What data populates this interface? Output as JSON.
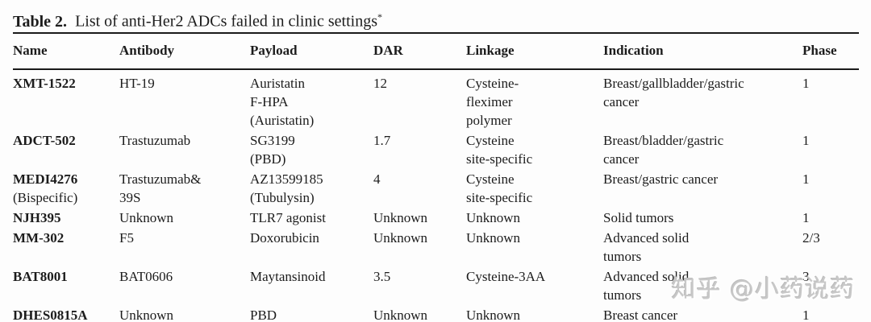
{
  "caption": {
    "label": "Table 2.",
    "text": "List of anti-Her2 ADCs failed in clinic settings",
    "superscript": "*"
  },
  "table": {
    "columns": [
      "Name",
      "Antibody",
      "Payload",
      "DAR",
      "Linkage",
      "Indication",
      "Phase"
    ],
    "rows": [
      {
        "name": "XMT-1522",
        "name_sub": "",
        "antibody": "HT-19",
        "payload": "Auristatin\nF-HPA\n(Auristatin)",
        "dar": "12",
        "linkage": "Cysteine-\nfleximer\npolymer",
        "indication": "Breast/gallbladder/gastric\ncancer",
        "phase": "1"
      },
      {
        "name": "ADCT-502",
        "name_sub": "",
        "antibody": "Trastuzumab",
        "payload": "SG3199\n(PBD)",
        "dar": "1.7",
        "linkage": "Cysteine\nsite-specific",
        "indication": "Breast/bladder/gastric\ncancer",
        "phase": "1"
      },
      {
        "name": "MEDI4276",
        "name_sub": "(Bispecific)",
        "antibody": "Trastuzumab&\n39S",
        "payload": "AZ13599185\n(Tubulysin)",
        "dar": "4",
        "linkage": "Cysteine\nsite-specific",
        "indication": "Breast/gastric cancer",
        "phase": "1"
      },
      {
        "name": "NJH395",
        "name_sub": "",
        "antibody": "Unknown",
        "payload": "TLR7 agonist",
        "dar": "Unknown",
        "linkage": "Unknown",
        "indication": "Solid tumors",
        "phase": "1"
      },
      {
        "name": "MM-302",
        "name_sub": "",
        "antibody": "F5",
        "payload": "Doxorubicin",
        "dar": "Unknown",
        "linkage": "Unknown",
        "indication": "Advanced solid\ntumors",
        "phase": "2/3"
      },
      {
        "name": "BAT8001",
        "name_sub": "",
        "antibody": "BAT0606",
        "payload": "Maytansinoid",
        "dar": "3.5",
        "linkage": "Cysteine-3AA",
        "indication": "Advanced solid\ntumors",
        "phase": "3"
      },
      {
        "name": "DHES0815A",
        "name_sub": "",
        "antibody": "Unknown",
        "payload": "PBD",
        "dar": "Unknown",
        "linkage": "Unknown",
        "indication": "Breast cancer",
        "phase": "1"
      }
    ]
  },
  "watermark": {
    "text": "知乎 @小药说药",
    "color": "#c8c8c8"
  }
}
